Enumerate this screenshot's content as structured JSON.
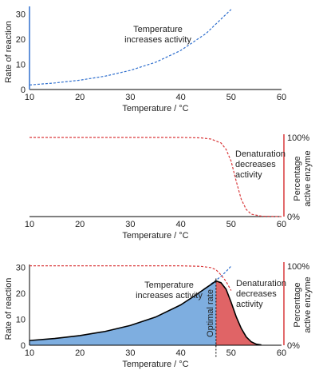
{
  "chart_data": [
    {
      "type": "line",
      "panel": "top",
      "xlabel": "Temperature / °C",
      "ylabel": "Rate of reaction",
      "xlim": [
        10,
        60
      ],
      "ylim": [
        0,
        33
      ],
      "xticks": [
        10,
        20,
        30,
        40,
        50,
        60
      ],
      "yticks": [
        0,
        10,
        20,
        30
      ],
      "series": [
        {
          "style": "dashed",
          "color": "#2f6fce",
          "x": [
            10,
            15,
            20,
            25,
            30,
            35,
            40,
            45,
            50
          ],
          "y": [
            1.8,
            2.6,
            3.7,
            5.3,
            7.6,
            10.8,
            15.5,
            22.2,
            31.8
          ]
        }
      ],
      "annotations": [
        {
          "lines": [
            "Temperature",
            "increases activity"
          ]
        }
      ]
    },
    {
      "type": "line",
      "panel": "middle",
      "xlabel": "Temperature / °C",
      "ylabel_right": [
        "Percentage",
        "active enzyme"
      ],
      "xlim": [
        10,
        60
      ],
      "ylim": [
        0,
        100
      ],
      "xticks": [
        10,
        20,
        30,
        40,
        50,
        60
      ],
      "yticks_right": [
        {
          "value": 0,
          "label": "0%"
        },
        {
          "value": 100,
          "label": "100%"
        }
      ],
      "series": [
        {
          "style": "dashed",
          "color": "#d9383a",
          "x": [
            10,
            20,
            30,
            40,
            44,
            46,
            48,
            49,
            50,
            51,
            52,
            53,
            54,
            56,
            60
          ],
          "y": [
            100,
            100,
            100,
            100,
            99.5,
            98,
            93,
            85,
            70,
            45,
            22,
            9,
            3,
            0.5,
            0
          ]
        }
      ],
      "annotations": [
        {
          "lines": [
            "Denaturation",
            "decreases",
            "activity"
          ]
        }
      ]
    },
    {
      "type": "area",
      "panel": "bottom",
      "xlabel": "Temperature / °C",
      "ylabel": "Rate of reaction",
      "ylabel_right": [
        "Percentage",
        "active enzyme"
      ],
      "xlim": [
        10,
        60
      ],
      "ylim": [
        0,
        31
      ],
      "xticks": [
        10,
        20,
        30,
        40,
        50,
        60
      ],
      "yticks": [
        0,
        10,
        20,
        30
      ],
      "yticks_right": [
        {
          "label": "0%"
        },
        {
          "label": "100%"
        }
      ],
      "optimal_temperature": 47,
      "series": [
        {
          "role": "observed rate",
          "color": "#000000",
          "x": [
            10,
            15,
            20,
            25,
            30,
            35,
            40,
            43,
            45,
            46,
            47,
            48,
            49,
            50,
            51,
            52,
            53,
            54,
            55,
            56
          ],
          "y": [
            1.8,
            2.6,
            3.7,
            5.3,
            7.6,
            10.8,
            15.5,
            19.3,
            22.0,
            23.3,
            24.7,
            24.0,
            21.5,
            16.5,
            11.0,
            6.5,
            3.2,
            1.3,
            0.4,
            0.1
          ],
          "fill_below_optimal": "#7eaee0",
          "fill_above_optimal": "#e06466"
        },
        {
          "role": "temperature effect",
          "style": "dashed",
          "color": "#2f6fce",
          "x": [
            46,
            47,
            48,
            49,
            50
          ],
          "y": [
            23.6,
            24.9,
            26.5,
            28.3,
            30.4
          ]
        },
        {
          "role": "active enzyme",
          "style": "dashed",
          "color": "#d9383a",
          "x": [
            10,
            20,
            30,
            40,
            44,
            46,
            47,
            48,
            49,
            50
          ],
          "y": [
            30.5,
            30.5,
            30.5,
            30.5,
            30.3,
            29.8,
            29.0,
            27.0,
            24.5,
            21.0
          ]
        }
      ],
      "annotations": [
        {
          "lines": [
            "Temperature",
            "increases activity"
          ]
        },
        {
          "lines": [
            "Denaturation",
            "decreases",
            "activity"
          ]
        },
        {
          "lines": [
            "Optimal rate"
          ]
        }
      ]
    }
  ]
}
